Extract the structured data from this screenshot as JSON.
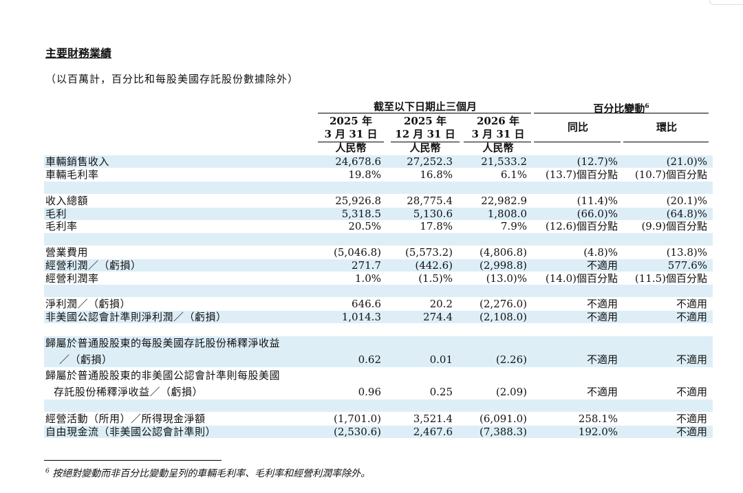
{
  "title": "主要財務業績",
  "subtitle": "（以百萬計，百分比和每股美國存託股份數據除外）",
  "header": {
    "group_period": "截至以下日期止三個月",
    "group_change": "百分比變動",
    "group_change_sup": "6",
    "cols": [
      {
        "line1": "2025 年",
        "line2": "3 月 31 日",
        "unit": "人民幣"
      },
      {
        "line1": "2025 年",
        "line2": "12 月 31 日",
        "unit": "人民幣"
      },
      {
        "line1": "2026 年",
        "line2": "3 月 31 日",
        "unit": "人民幣"
      }
    ],
    "yoy": "同比",
    "qoq": "環比"
  },
  "rows": [
    {
      "label": "車輛銷售收入",
      "v": [
        "24,678.6",
        "27,252.3",
        "21,533.2",
        "(12.7)%",
        "(21.0)%"
      ]
    },
    {
      "label": "車輛毛利率",
      "v": [
        "19.8%",
        "16.8%",
        "6.1%",
        "(13.7)個百分點",
        "(10.7)個百分點"
      ]
    },
    {
      "label": "收入總額",
      "v": [
        "25,926.8",
        "28,775.4",
        "22,982.9",
        "(11.4)%",
        "(20.1)%"
      ]
    },
    {
      "label": "毛利",
      "v": [
        "5,318.5",
        "5,130.6",
        "1,808.0",
        "(66.0)%",
        "(64.8)%"
      ]
    },
    {
      "label": "毛利率",
      "v": [
        "20.5%",
        "17.8%",
        "7.9%",
        "(12.6)個百分點",
        "(9.9)個百分點"
      ]
    },
    {
      "label": "營業費用",
      "v": [
        "(5,046.8)",
        "(5,573.2)",
        "(4,806.8)",
        "(4.8)%",
        "(13.8)%"
      ]
    },
    {
      "label": "經營利潤／（虧損）",
      "v": [
        "271.7",
        "(442.6)",
        "(2,998.8)",
        "不適用",
        "577.6%"
      ]
    },
    {
      "label": "經營利潤率",
      "v": [
        "1.0%",
        "(1.5)%",
        "(13.0)%",
        "(14.0)個百分點",
        "(11.5)個百分點"
      ]
    },
    {
      "label": "淨利潤／（虧損）",
      "v": [
        "646.6",
        "20.2",
        "(2,276.0)",
        "不適用",
        "不適用"
      ]
    },
    {
      "label": "非美國公認會計準則淨利潤／（虧損）",
      "v": [
        "1,014.3",
        "274.4",
        "(2,108.0)",
        "不適用",
        "不適用"
      ]
    },
    {
      "label": "歸屬於普通股股東的每股美國存託股份稀釋淨收益",
      "label2": "／（虧損）",
      "v": [
        "0.62",
        "0.01",
        "(2.26)",
        "不適用",
        "不適用"
      ]
    },
    {
      "label": "歸屬於普通股股東的非美國公認會計準則每股美國",
      "label2": "存託股份稀釋淨收益／（虧損）",
      "v": [
        "0.96",
        "0.25",
        "(2.09)",
        "不適用",
        "不適用"
      ]
    },
    {
      "label": "經營活動（所用）／所得現金淨額",
      "v": [
        "(1,701.0)",
        "3,521.4",
        "(6,091.0)",
        "258.1%",
        "不適用"
      ]
    },
    {
      "label": "自由現金流（非美國公認會計準則）",
      "v": [
        "(2,530.6)",
        "2,467.6",
        "(7,388.3)",
        "192.0%",
        "不適用"
      ]
    }
  ],
  "footnote_sup": "6",
  "footnote": "按絕對變動而非百分比變動呈列的車輛毛利率、毛利率和經營利潤率除外。"
}
